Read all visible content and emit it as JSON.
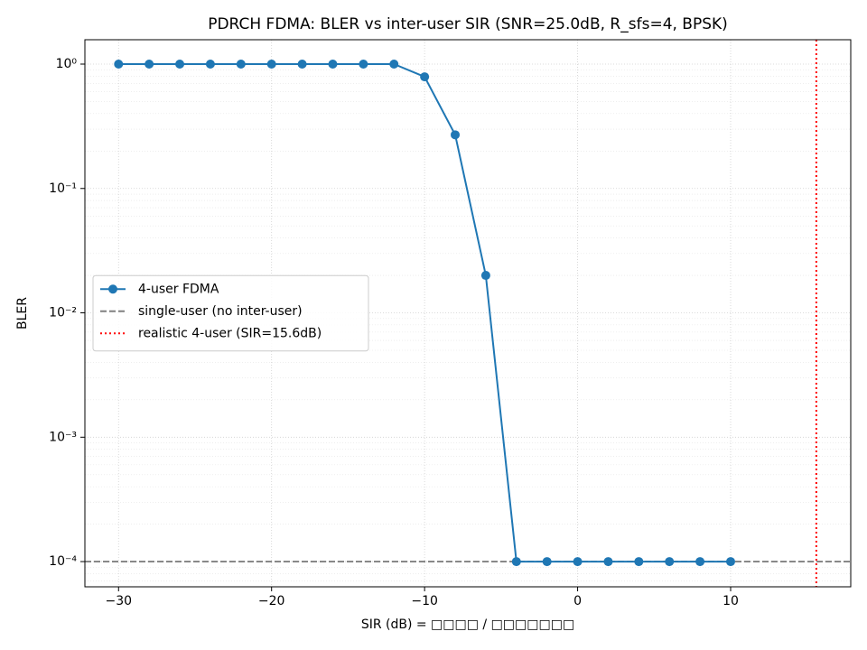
{
  "chart_data": {
    "type": "line",
    "title": "PDRCH FDMA: BLER vs inter-user SIR (SNR=25.0dB, R_sfs=4, BPSK)",
    "x_label": "SIR (dB)  =  □□□□ / □□□□□□□",
    "y_label": "BLER",
    "x": [
      -30,
      -28,
      -26,
      -24,
      -22,
      -20,
      -18,
      -16,
      -14,
      -12,
      -10,
      -8,
      -6,
      -4,
      -2,
      0,
      2,
      4,
      6,
      8,
      10
    ],
    "series": [
      {
        "name": "4-user FDMA",
        "color": "#1f77b4",
        "values": [
          1,
          1,
          1,
          1,
          1,
          1,
          1,
          1,
          1,
          1,
          0.79,
          0.27,
          0.02,
          0.0001,
          0.0001,
          0.0001,
          0.0001,
          0.0001,
          0.0001,
          0.0001,
          0.0001
        ]
      }
    ],
    "hlines": [
      {
        "name": "single-user (no inter-user)",
        "value": 0.0001,
        "color": "#808080"
      }
    ],
    "vlines": [
      {
        "name": "realistic 4-user (SIR=15.6dB)",
        "value": 15.6,
        "color": "#ff0000"
      }
    ],
    "xlim": [
      -32.2,
      17.85
    ],
    "ylim": [
      6.27e-05,
      1.57
    ],
    "y_scale": "log",
    "grid": true,
    "legend": "center left",
    "xticks": [
      {
        "value": -30,
        "label": "−30"
      },
      {
        "value": -20,
        "label": "−20"
      },
      {
        "value": -10,
        "label": "−10"
      },
      0,
      10
    ],
    "yticks": [
      {
        "value": 1,
        "label": "10⁰"
      },
      {
        "value": 0.1,
        "label": "10⁻¹"
      },
      {
        "value": 0.01,
        "label": "10⁻²"
      },
      {
        "value": 0.001,
        "label": "10⁻³"
      },
      {
        "value": 0.0001,
        "label": "10⁻⁴"
      }
    ]
  }
}
